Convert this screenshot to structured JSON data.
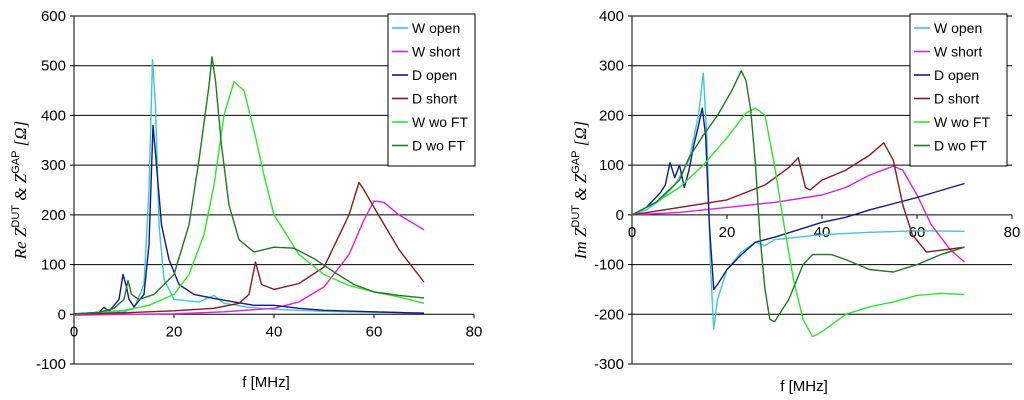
{
  "chart_data": [
    {
      "type": "line",
      "ylabel": {
        "prefix": "Re Z",
        "sup1": "DUT",
        "mid": " & Z",
        "sup2": "GAP",
        "unit": " [Ω]"
      },
      "xlabel": "f [MHz]",
      "xlim": [
        0,
        80
      ],
      "ylim": [
        -100,
        600
      ],
      "xticks": [
        0,
        20,
        40,
        60,
        80
      ],
      "yticks": [
        -100,
        0,
        100,
        200,
        300,
        400,
        500,
        600
      ],
      "grid": "horizontal",
      "legend_position": "top-right",
      "series": [
        {
          "name": "W open",
          "color": "#3fc7d6",
          "points": [
            [
              0,
              1
            ],
            [
              5,
              2
            ],
            [
              10,
              5
            ],
            [
              12,
              12
            ],
            [
              14,
              60
            ],
            [
              15,
              250
            ],
            [
              15.7,
              512
            ],
            [
              16.3,
              420
            ],
            [
              17,
              180
            ],
            [
              18,
              70
            ],
            [
              20,
              30
            ],
            [
              25,
              25
            ],
            [
              28,
              38
            ],
            [
              30,
              22
            ],
            [
              35,
              14
            ],
            [
              40,
              10
            ],
            [
              50,
              6
            ],
            [
              60,
              4
            ],
            [
              70,
              3
            ]
          ]
        },
        {
          "name": "W short",
          "color": "#e020e0",
          "points": [
            [
              0,
              -2
            ],
            [
              10,
              0
            ],
            [
              20,
              1
            ],
            [
              30,
              5
            ],
            [
              40,
              12
            ],
            [
              45,
              25
            ],
            [
              50,
              55
            ],
            [
              55,
              120
            ],
            [
              58,
              190
            ],
            [
              60,
              228
            ],
            [
              62,
              225
            ],
            [
              65,
              200
            ],
            [
              70,
              170
            ]
          ]
        },
        {
          "name": "D open",
          "color": "#101a8a",
          "points": [
            [
              0,
              1
            ],
            [
              5,
              4
            ],
            [
              6,
              14
            ],
            [
              7,
              6
            ],
            [
              9,
              30
            ],
            [
              9.8,
              80
            ],
            [
              10.5,
              55
            ],
            [
              11,
              30
            ],
            [
              12,
              15
            ],
            [
              14,
              40
            ],
            [
              15,
              140
            ],
            [
              15.8,
              380
            ],
            [
              16.5,
              300
            ],
            [
              17.5,
              180
            ],
            [
              19,
              110
            ],
            [
              21,
              60
            ],
            [
              24,
              40
            ],
            [
              28,
              32
            ],
            [
              32,
              25
            ],
            [
              36,
              18
            ],
            [
              40,
              18
            ],
            [
              45,
              12
            ],
            [
              50,
              8
            ],
            [
              60,
              5
            ],
            [
              70,
              2
            ]
          ]
        },
        {
          "name": "D short",
          "color": "#8b1a1a",
          "points": [
            [
              0,
              1
            ],
            [
              10,
              3
            ],
            [
              20,
              7
            ],
            [
              28,
              12
            ],
            [
              33,
              22
            ],
            [
              35,
              40
            ],
            [
              36.3,
              105
            ],
            [
              37.5,
              60
            ],
            [
              40,
              50
            ],
            [
              45,
              62
            ],
            [
              50,
              95
            ],
            [
              55,
              200
            ],
            [
              57,
              265
            ],
            [
              58,
              250
            ],
            [
              60,
              215
            ],
            [
              65,
              130
            ],
            [
              70,
              65
            ]
          ]
        },
        {
          "name": "W wo FT",
          "color": "#2ae82a",
          "points": [
            [
              0,
              0
            ],
            [
              10,
              8
            ],
            [
              15,
              18
            ],
            [
              20,
              40
            ],
            [
              23,
              80
            ],
            [
              26,
              160
            ],
            [
              28,
              260
            ],
            [
              30,
              400
            ],
            [
              32,
              468
            ],
            [
              34,
              450
            ],
            [
              36,
              370
            ],
            [
              38,
              280
            ],
            [
              40,
              200
            ],
            [
              45,
              120
            ],
            [
              50,
              80
            ],
            [
              55,
              58
            ],
            [
              60,
              45
            ],
            [
              65,
              35
            ],
            [
              70,
              22
            ]
          ]
        },
        {
          "name": "D wo FT",
          "color": "#1f7a1f",
          "points": [
            [
              0,
              0
            ],
            [
              5,
              4
            ],
            [
              8,
              12
            ],
            [
              10,
              30
            ],
            [
              10.8,
              68
            ],
            [
              11.5,
              40
            ],
            [
              13,
              30
            ],
            [
              16,
              40
            ],
            [
              20,
              80
            ],
            [
              23,
              180
            ],
            [
              25,
              310
            ],
            [
              27,
              460
            ],
            [
              27.6,
              518
            ],
            [
              28.3,
              470
            ],
            [
              29.5,
              340
            ],
            [
              31,
              220
            ],
            [
              33,
              150
            ],
            [
              36,
              125
            ],
            [
              40,
              135
            ],
            [
              44,
              133
            ],
            [
              48,
              112
            ],
            [
              52,
              85
            ],
            [
              56,
              60
            ],
            [
              60,
              45
            ],
            [
              65,
              38
            ],
            [
              70,
              33
            ]
          ]
        }
      ]
    },
    {
      "type": "line",
      "ylabel": {
        "prefix": "Im Z",
        "sup1": "DUT",
        "mid": " & Z",
        "sup2": "GAP",
        "unit": " [Ω]"
      },
      "xlabel": "f [MHz]",
      "xlim": [
        0,
        80
      ],
      "ylim": [
        -300,
        400
      ],
      "xticks": [
        0,
        20,
        40,
        60,
        80
      ],
      "yticks": [
        -300,
        -200,
        -100,
        0,
        100,
        200,
        300,
        400
      ],
      "grid": "horizontal",
      "legend_position": "top-right",
      "series": [
        {
          "name": "W open",
          "color": "#3fc7d6",
          "points": [
            [
              0,
              0
            ],
            [
              3,
              10
            ],
            [
              6,
              30
            ],
            [
              9,
              60
            ],
            [
              12,
              110
            ],
            [
              14,
              200
            ],
            [
              15,
              285
            ],
            [
              15.8,
              150
            ],
            [
              16.5,
              -100
            ],
            [
              17.2,
              -230
            ],
            [
              18,
              -170
            ],
            [
              20,
              -110
            ],
            [
              23,
              -75
            ],
            [
              26,
              -55
            ],
            [
              28,
              -62
            ],
            [
              30,
              -50
            ],
            [
              35,
              -45
            ],
            [
              40,
              -40
            ],
            [
              50,
              -35
            ],
            [
              60,
              -32
            ],
            [
              70,
              -33
            ]
          ]
        },
        {
          "name": "W short",
          "color": "#e020e0",
          "points": [
            [
              0,
              0
            ],
            [
              10,
              5
            ],
            [
              20,
              15
            ],
            [
              30,
              25
            ],
            [
              40,
              40
            ],
            [
              45,
              55
            ],
            [
              50,
              80
            ],
            [
              55,
              98
            ],
            [
              57,
              90
            ],
            [
              60,
              40
            ],
            [
              63,
              -20
            ],
            [
              67,
              -70
            ],
            [
              70,
              -95
            ]
          ]
        },
        {
          "name": "D open",
          "color": "#101a8a",
          "points": [
            [
              0,
              0
            ],
            [
              3,
              15
            ],
            [
              5,
              35
            ],
            [
              6,
              45
            ],
            [
              7,
              60
            ],
            [
              8,
              105
            ],
            [
              9,
              75
            ],
            [
              10,
              100
            ],
            [
              11,
              55
            ],
            [
              12,
              90
            ],
            [
              13,
              140
            ],
            [
              14,
              180
            ],
            [
              14.8,
              215
            ],
            [
              15.5,
              160
            ],
            [
              16.3,
              -20
            ],
            [
              17.2,
              -150
            ],
            [
              18,
              -140
            ],
            [
              20,
              -110
            ],
            [
              23,
              -80
            ],
            [
              26,
              -55
            ],
            [
              30,
              -45
            ],
            [
              35,
              -30
            ],
            [
              40,
              -15
            ],
            [
              45,
              -5
            ],
            [
              50,
              10
            ],
            [
              60,
              35
            ],
            [
              70,
              63
            ]
          ]
        },
        {
          "name": "D short",
          "color": "#8b1a1a",
          "points": [
            [
              0,
              0
            ],
            [
              10,
              15
            ],
            [
              20,
              30
            ],
            [
              28,
              60
            ],
            [
              33,
              95
            ],
            [
              35,
              115
            ],
            [
              36,
              75
            ],
            [
              36.5,
              55
            ],
            [
              37.5,
              50
            ],
            [
              40,
              70
            ],
            [
              45,
              90
            ],
            [
              50,
              120
            ],
            [
              53,
              145
            ],
            [
              55,
              110
            ],
            [
              57,
              20
            ],
            [
              59,
              -40
            ],
            [
              62,
              -75
            ],
            [
              70,
              -65
            ]
          ]
        },
        {
          "name": "W wo FT",
          "color": "#2ae82a",
          "points": [
            [
              0,
              0
            ],
            [
              5,
              25
            ],
            [
              10,
              55
            ],
            [
              15,
              100
            ],
            [
              20,
              155
            ],
            [
              24,
              205
            ],
            [
              26,
              215
            ],
            [
              28,
              200
            ],
            [
              30,
              100
            ],
            [
              32,
              -20
            ],
            [
              34,
              -130
            ],
            [
              36,
              -210
            ],
            [
              38,
              -245
            ],
            [
              40,
              -235
            ],
            [
              45,
              -200
            ],
            [
              50,
              -185
            ],
            [
              55,
              -175
            ],
            [
              60,
              -162
            ],
            [
              65,
              -158
            ],
            [
              70,
              -160
            ]
          ]
        },
        {
          "name": "D wo FT",
          "color": "#1f7a1f",
          "points": [
            [
              0,
              0
            ],
            [
              5,
              25
            ],
            [
              10,
              70
            ],
            [
              12,
              115
            ],
            [
              15,
              160
            ],
            [
              18,
              200
            ],
            [
              21,
              250
            ],
            [
              23,
              290
            ],
            [
              24,
              270
            ],
            [
              25,
              210
            ],
            [
              26,
              100
            ],
            [
              27,
              -50
            ],
            [
              28,
              -150
            ],
            [
              29,
              -210
            ],
            [
              30,
              -215
            ],
            [
              33,
              -170
            ],
            [
              36,
              -100
            ],
            [
              38,
              -80
            ],
            [
              42,
              -80
            ],
            [
              45,
              -90
            ],
            [
              50,
              -110
            ],
            [
              55,
              -115
            ],
            [
              60,
              -100
            ],
            [
              65,
              -80
            ],
            [
              70,
              -65
            ]
          ]
        }
      ]
    }
  ]
}
